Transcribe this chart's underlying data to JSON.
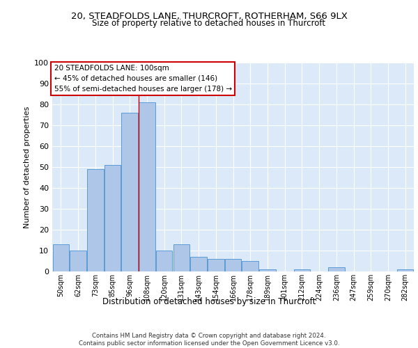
{
  "title_line1": "20, STEADFOLDS LANE, THURCROFT, ROTHERHAM, S66 9LX",
  "title_line2": "Size of property relative to detached houses in Thurcroft",
  "xlabel": "Distribution of detached houses by size in Thurcroft",
  "ylabel": "Number of detached properties",
  "footer_line1": "Contains HM Land Registry data © Crown copyright and database right 2024.",
  "footer_line2": "Contains public sector information licensed under the Open Government Licence v3.0.",
  "bar_labels": [
    "50sqm",
    "62sqm",
    "73sqm",
    "85sqm",
    "96sqm",
    "108sqm",
    "120sqm",
    "131sqm",
    "143sqm",
    "154sqm",
    "166sqm",
    "178sqm",
    "189sqm",
    "201sqm",
    "212sqm",
    "224sqm",
    "236sqm",
    "247sqm",
    "259sqm",
    "270sqm",
    "282sqm"
  ],
  "bar_values": [
    13,
    10,
    49,
    51,
    76,
    81,
    10,
    13,
    7,
    6,
    6,
    5,
    1,
    0,
    1,
    0,
    2,
    0,
    0,
    0,
    1
  ],
  "bar_color": "#aec6e8",
  "bar_edge_color": "#5b9bd5",
  "background_color": "#dce9f8",
  "grid_color": "#ffffff",
  "annotation_text": "20 STEADFOLDS LANE: 100sqm\n← 45% of detached houses are smaller (146)\n55% of semi-detached houses are larger (178) →",
  "annotation_box_color": "#ffffff",
  "annotation_box_edge_color": "#cc0000",
  "vline_x": 4.5,
  "vline_color": "#cc0000",
  "ylim": [
    0,
    100
  ],
  "yticks": [
    0,
    10,
    20,
    30,
    40,
    50,
    60,
    70,
    80,
    90,
    100
  ],
  "fig_width": 6.0,
  "fig_height": 5.0,
  "fig_dpi": 100
}
